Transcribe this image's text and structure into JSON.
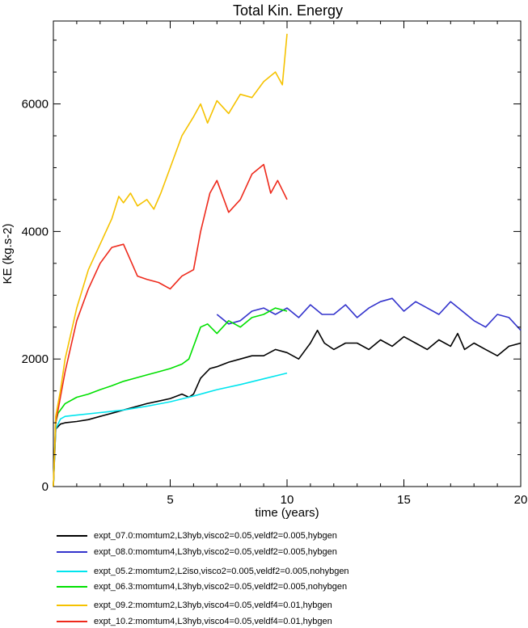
{
  "chart_data": {
    "type": "line",
    "title": "Total Kin. Energy",
    "xlabel": "time (years)",
    "ylabel": "KE (kg.s-2)",
    "xlim": [
      0,
      20
    ],
    "ylim": [
      0,
      7300
    ],
    "xticks": [
      5,
      10,
      15,
      20
    ],
    "yticks": [
      0,
      2000,
      4000,
      6000
    ],
    "grid": false,
    "legend_position": "below plot",
    "series": [
      {
        "name": "expt_07.0:momtum2,L3hyb,visco2=0.05,veldf2=0.005,hybgen",
        "color": "#000000",
        "x": [
          0,
          0.1,
          0.3,
          0.5,
          1,
          1.5,
          2,
          2.5,
          3,
          3.5,
          4,
          4.5,
          5,
          5.5,
          5.8,
          6,
          6.3,
          6.7,
          7,
          7.5,
          8,
          8.5,
          9,
          9.5,
          10,
          10.5,
          11,
          11.3,
          11.6,
          12,
          12.5,
          13,
          13.5,
          14,
          14.5,
          15,
          15.5,
          16,
          16.5,
          17,
          17.3,
          17.6,
          18,
          18.5,
          19,
          19.5,
          20
        ],
        "y": [
          0,
          900,
          980,
          1000,
          1020,
          1050,
          1100,
          1150,
          1200,
          1250,
          1300,
          1340,
          1380,
          1450,
          1400,
          1450,
          1700,
          1850,
          1880,
          1950,
          2000,
          2050,
          2050,
          2150,
          2100,
          2000,
          2250,
          2450,
          2250,
          2150,
          2250,
          2250,
          2150,
          2300,
          2200,
          2350,
          2250,
          2150,
          2300,
          2200,
          2400,
          2150,
          2250,
          2150,
          2050,
          2200,
          2250
        ]
      },
      {
        "name": "expt_08.0:momtum4,L3hyb,visco2=0.05,veldf2=0.005,hybgen",
        "color": "#3333cc",
        "x": [
          7,
          7.5,
          8,
          8.5,
          9,
          9.5,
          10,
          10.5,
          11,
          11.5,
          12,
          12.5,
          13,
          13.5,
          14,
          14.5,
          15,
          15.5,
          16,
          16.5,
          17,
          17.5,
          18,
          18.5,
          19,
          19.5,
          20
        ],
        "y": [
          2700,
          2550,
          2600,
          2750,
          2800,
          2700,
          2800,
          2650,
          2850,
          2700,
          2700,
          2850,
          2650,
          2800,
          2900,
          2950,
          2750,
          2900,
          2800,
          2700,
          2900,
          2750,
          2600,
          2500,
          2700,
          2650,
          2450
        ]
      },
      {
        "name": "expt_05.2:momtum2,L2iso,visco2=0.005,veldf2=0.005,nohybgen",
        "color": "#00e5ee",
        "x": [
          0,
          0.1,
          0.3,
          0.5,
          1,
          2,
          3,
          4,
          5,
          6,
          7,
          8,
          9,
          10
        ],
        "y": [
          0,
          900,
          1060,
          1100,
          1120,
          1160,
          1200,
          1260,
          1330,
          1420,
          1520,
          1600,
          1690,
          1780
        ]
      },
      {
        "name": "expt_06.3:momtum4,L3hyb,visco2=0.05,veldf2=0.005,nohybgen",
        "color": "#00e000",
        "x": [
          0,
          0.1,
          0.2,
          0.5,
          1,
          1.5,
          2,
          2.5,
          3,
          3.5,
          4,
          4.5,
          5,
          5.5,
          5.8,
          6,
          6.3,
          6.6,
          7,
          7.5,
          8,
          8.5,
          9,
          9.5,
          10
        ],
        "y": [
          0,
          1000,
          1150,
          1300,
          1400,
          1450,
          1520,
          1580,
          1650,
          1700,
          1750,
          1800,
          1850,
          1920,
          2000,
          2200,
          2500,
          2550,
          2400,
          2600,
          2500,
          2650,
          2700,
          2800,
          2750
        ]
      },
      {
        "name": "expt_09.2:momtum2,L3hyb,visco4=0.05,veldf4=0.01,hybgen",
        "color": "#f5c200",
        "x": [
          0,
          0.1,
          0.3,
          0.5,
          1,
          1.5,
          2,
          2.5,
          2.8,
          3,
          3.3,
          3.6,
          4,
          4.3,
          4.6,
          5,
          5.5,
          6,
          6.3,
          6.6,
          7,
          7.5,
          8,
          8.5,
          9,
          9.5,
          9.8,
          10
        ],
        "y": [
          0,
          1100,
          1500,
          2000,
          2800,
          3400,
          3800,
          4200,
          4550,
          4450,
          4600,
          4400,
          4500,
          4350,
          4600,
          5000,
          5500,
          5800,
          6000,
          5700,
          6050,
          5850,
          6150,
          6100,
          6350,
          6500,
          6300,
          7100
        ]
      },
      {
        "name": "expt_10.2:momtum4,L3hyb,visco4=0.05,veldf4=0.01,hybgen",
        "color": "#ee2a1c",
        "x": [
          0,
          0.1,
          0.3,
          0.5,
          1,
          1.5,
          2,
          2.5,
          3,
          3.3,
          3.6,
          4,
          4.5,
          5,
          5.5,
          6,
          6.3,
          6.7,
          7,
          7.5,
          8,
          8.5,
          9,
          9.3,
          9.6,
          10
        ],
        "y": [
          0,
          1000,
          1400,
          1800,
          2600,
          3100,
          3500,
          3750,
          3800,
          3550,
          3300,
          3250,
          3200,
          3100,
          3300,
          3400,
          4000,
          4600,
          4800,
          4300,
          4500,
          4900,
          5050,
          4600,
          4800,
          4500
        ]
      }
    ]
  }
}
